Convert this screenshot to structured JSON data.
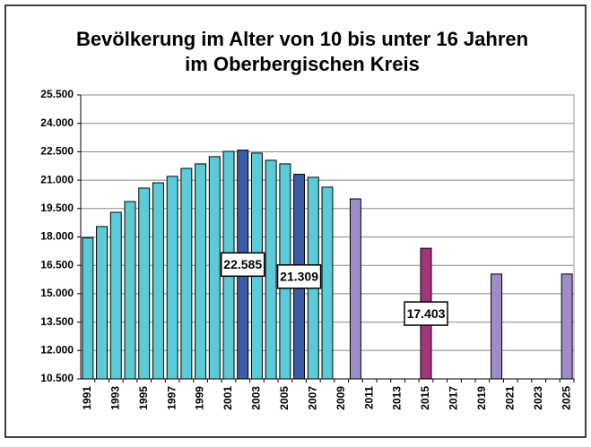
{
  "chart_data": {
    "type": "bar",
    "title": [
      "Bevölkerung im Alter von 10 bis unter 16 Jahren",
      "im Oberbergischen Kreis"
    ],
    "categories": [
      "1991",
      null,
      "1993",
      null,
      "1995",
      null,
      "1997",
      null,
      "1999",
      null,
      "2001",
      null,
      "2003",
      null,
      "2005",
      null,
      "2007",
      null,
      "2009",
      null,
      "2011",
      null,
      "2013",
      null,
      "2015",
      null,
      "2017",
      null,
      "2019",
      null,
      "2021",
      null,
      "2023",
      null,
      "2025"
    ],
    "values": [
      17950,
      18550,
      19300,
      19870,
      20580,
      20860,
      21200,
      21620,
      21860,
      22240,
      22520,
      22585,
      22430,
      22050,
      21860,
      21309,
      21150,
      20630,
      null,
      20010,
      null,
      null,
      null,
      null,
      17403,
      null,
      null,
      null,
      null,
      16040,
      null,
      null,
      null,
      null,
      16040
    ],
    "value_labels": [
      null,
      null,
      null,
      null,
      null,
      null,
      null,
      null,
      null,
      null,
      null,
      "22.585",
      null,
      null,
      null,
      "21.309",
      null,
      null,
      null,
      null,
      null,
      null,
      null,
      null,
      "17.403",
      null,
      null,
      null,
      null,
      null,
      null,
      null,
      null,
      null,
      null
    ],
    "colors": [
      "#5ccbd8",
      "#5ccbd8",
      "#5ccbd8",
      "#5ccbd8",
      "#5ccbd8",
      "#5ccbd8",
      "#5ccbd8",
      "#5ccbd8",
      "#5ccbd8",
      "#5ccbd8",
      "#5ccbd8",
      "#3b5ca8",
      "#5ccbd8",
      "#5ccbd8",
      "#5ccbd8",
      "#3b5ca8",
      "#5ccbd8",
      "#5ccbd8",
      null,
      "#a08cc8",
      null,
      null,
      null,
      null,
      "#a3347e",
      null,
      null,
      null,
      null,
      "#a08cc8",
      null,
      null,
      null,
      null,
      "#a08cc8"
    ],
    "ylim": [
      10500,
      25500
    ],
    "yticks": [
      {
        "value": 10500,
        "label": "10.500"
      },
      {
        "value": 12000,
        "label": "12.000"
      },
      {
        "value": 13500,
        "label": "13.500"
      },
      {
        "value": 15000,
        "label": "15.000"
      },
      {
        "value": 16500,
        "label": "16.500"
      },
      {
        "value": 18000,
        "label": "18.000"
      },
      {
        "value": 19500,
        "label": "19.500"
      },
      {
        "value": 21000,
        "label": "21.000"
      },
      {
        "value": 22500,
        "label": "22.500"
      },
      {
        "value": 24000,
        "label": "24.000"
      },
      {
        "value": 25500,
        "label": "25.500"
      }
    ],
    "grid": true
  }
}
